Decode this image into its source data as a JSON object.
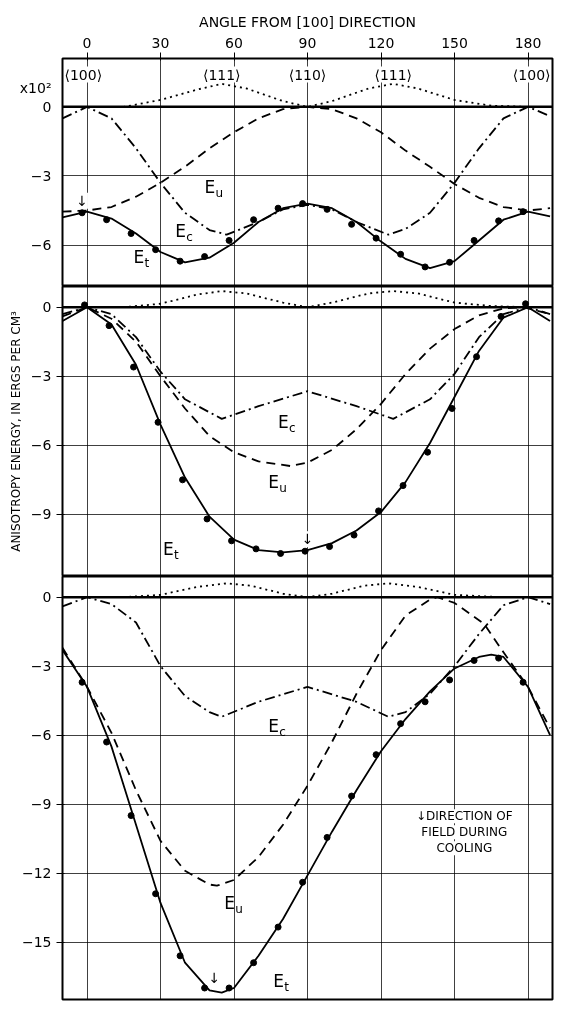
{
  "chart_data": [
    {
      "type": "line",
      "xlabel": "ANGLE FROM [100] DIRECTION",
      "xlim": [
        -10,
        190
      ],
      "xticks": [
        0,
        30,
        60,
        90,
        120,
        150,
        180
      ],
      "ylim": [
        -7.8,
        2.1
      ],
      "yticks": [
        0,
        -3,
        -6
      ],
      "grid": true,
      "ref_lines": [
        {
          "axis": "y",
          "value": 0
        }
      ],
      "annotations": [
        "x10²",
        "⟨100⟩",
        "⟨111⟩",
        "⟨110⟩",
        "⟨111⟩",
        "⟨100⟩",
        {
          "text": "↓",
          "x": -2,
          "y": -4.6
        }
      ],
      "series": [
        {
          "name": "E$_{t}$",
          "color": "#000000",
          "line_style": "solid",
          "x": [
            -10,
            0,
            10,
            20,
            30,
            40,
            50,
            60,
            70,
            80,
            90,
            100,
            110,
            120,
            130,
            140,
            150,
            160,
            170,
            180,
            189
          ],
          "values": [
            -4.8,
            -4.55,
            -4.85,
            -5.5,
            -6.3,
            -6.75,
            -6.55,
            -5.9,
            -5.0,
            -4.4,
            -4.2,
            -4.4,
            -5.0,
            -5.85,
            -6.6,
            -7.0,
            -6.7,
            -5.8,
            -4.9,
            -4.55,
            -4.75
          ]
        },
        {
          "type": "scatter",
          "marker": "circle",
          "color": "#000000",
          "x": [
            -2,
            8,
            18,
            28,
            38,
            48,
            58,
            68,
            78,
            88,
            98,
            108,
            118,
            128,
            138,
            148,
            158,
            168,
            178
          ],
          "values": [
            -4.6,
            -4.9,
            -5.5,
            -6.2,
            -6.7,
            -6.5,
            -5.8,
            -4.9,
            -4.4,
            -4.2,
            -4.45,
            -5.1,
            -5.7,
            -6.4,
            -6.95,
            -6.75,
            -5.8,
            -4.95,
            -4.55
          ]
        },
        {
          "name": "E$_{c}$",
          "color": "#000000",
          "line_style": "dashdot",
          "x": [
            -10,
            0,
            10,
            20,
            30,
            40,
            50,
            57,
            70,
            80,
            90,
            100,
            110,
            123,
            130,
            140,
            150,
            160,
            170,
            180,
            189
          ],
          "values": [
            -0.5,
            0,
            -0.5,
            -1.8,
            -3.3,
            -4.6,
            -5.35,
            -5.55,
            -5.0,
            -4.45,
            -4.25,
            -4.45,
            -5.0,
            -5.55,
            -5.3,
            -4.6,
            -3.3,
            -1.8,
            -0.5,
            0,
            -0.4
          ]
        },
        {
          "name": "E$_{u}$",
          "color": "#000000",
          "line_style": "dashed",
          "x": [
            -10,
            0,
            10,
            20,
            30,
            40,
            50,
            60,
            70,
            80,
            90,
            100,
            110,
            120,
            130,
            140,
            150,
            160,
            170,
            180,
            189
          ],
          "values": [
            -4.55,
            -4.5,
            -4.35,
            -3.9,
            -3.3,
            -2.6,
            -1.8,
            -1.1,
            -0.5,
            -0.1,
            0,
            -0.1,
            -0.5,
            -1.1,
            -1.9,
            -2.6,
            -3.35,
            -3.95,
            -4.35,
            -4.5,
            -4.4
          ]
        },
        {
          "color": "#000000",
          "line_style": "dotted",
          "x": [
            0,
            15,
            30,
            45,
            55,
            65,
            80,
            90,
            100,
            115,
            125,
            135,
            150,
            165,
            180
          ],
          "values": [
            0,
            0,
            0.3,
            0.75,
            1.0,
            0.8,
            0.25,
            0,
            0.25,
            0.8,
            1.0,
            0.8,
            0.3,
            0.05,
            0
          ]
        }
      ]
    },
    {
      "type": "line",
      "ylabel": "ANISOTROPY ENERGY, IN ERGS PER CM³",
      "xlim": [
        -10,
        190
      ],
      "xticks": [
        0,
        30,
        60,
        90,
        120,
        150,
        180
      ],
      "ylim": [
        -11.7,
        0.9
      ],
      "yticks": [
        0,
        -3,
        -6,
        -9
      ],
      "grid": true,
      "tick_labels": "y",
      "ref_lines": [
        {
          "axis": "y",
          "value": 0
        }
      ],
      "annotations": [
        {
          "text": "↓",
          "x": 90,
          "y": -10.6
        }
      ],
      "series": [
        {
          "name": "E$_{t}$",
          "color": "#000000",
          "line_style": "solid",
          "x": [
            -10,
            0,
            10,
            20,
            30,
            40,
            50,
            60,
            70,
            80,
            90,
            100,
            110,
            120,
            130,
            140,
            150,
            160,
            170,
            180,
            189
          ],
          "values": [
            -0.6,
            0,
            -0.75,
            -2.5,
            -5.1,
            -7.4,
            -9.1,
            -10.1,
            -10.55,
            -10.65,
            -10.55,
            -10.25,
            -9.7,
            -8.9,
            -7.6,
            -5.9,
            -3.9,
            -1.9,
            -0.45,
            0,
            -0.6
          ]
        },
        {
          "type": "scatter",
          "marker": "circle",
          "color": "#000000",
          "x": [
            -1,
            9,
            19,
            29,
            39,
            49,
            59,
            69,
            79,
            89,
            99,
            109,
            119,
            129,
            139,
            149,
            159,
            169,
            179
          ],
          "values": [
            0.1,
            -0.8,
            -2.6,
            -5.0,
            -7.5,
            -9.2,
            -10.15,
            -10.5,
            -10.7,
            -10.6,
            -10.4,
            -9.9,
            -8.85,
            -7.75,
            -6.3,
            -4.4,
            -2.15,
            -0.4,
            0.15
          ]
        },
        {
          "name": "E$_{c}$",
          "color": "#000000",
          "line_style": "dashdot",
          "x": [
            -10,
            0,
            10,
            20,
            30,
            40,
            55,
            70,
            90,
            110,
            125,
            140,
            150,
            160,
            170,
            180,
            189
          ],
          "values": [
            -0.3,
            0,
            -0.3,
            -1.3,
            -2.8,
            -4.0,
            -4.85,
            -4.3,
            -3.65,
            -4.3,
            -4.85,
            -4.0,
            -2.9,
            -1.3,
            -0.3,
            0,
            -0.3
          ]
        },
        {
          "name": "E$_{u}$",
          "color": "#000000",
          "line_style": "dashed",
          "x": [
            -10,
            0,
            10,
            20,
            30,
            40,
            50,
            60,
            70,
            83,
            90,
            100,
            110,
            120,
            130,
            140,
            150,
            160,
            170,
            178,
            189
          ],
          "values": [
            -0.4,
            0,
            -0.5,
            -1.5,
            -3.0,
            -4.4,
            -5.6,
            -6.3,
            -6.7,
            -6.9,
            -6.75,
            -6.2,
            -5.3,
            -4.2,
            -2.9,
            -1.8,
            -0.95,
            -0.35,
            -0.05,
            0,
            -0.3
          ]
        },
        {
          "color": "#000000",
          "line_style": "dotted",
          "x": [
            0,
            15,
            30,
            45,
            55,
            65,
            80,
            90,
            100,
            115,
            125,
            135,
            150,
            165,
            180
          ],
          "values": [
            0,
            0,
            0.15,
            0.55,
            0.7,
            0.6,
            0.2,
            0,
            0.2,
            0.6,
            0.7,
            0.6,
            0.2,
            0.05,
            0
          ]
        }
      ]
    },
    {
      "type": "line",
      "xlim": [
        -10,
        190
      ],
      "xticks": [
        0,
        30,
        60,
        90,
        120,
        150,
        180
      ],
      "ylim": [
        -17.5,
        0.9
      ],
      "yticks": [
        0,
        -3,
        -6,
        -9,
        -12,
        -15
      ],
      "grid": true,
      "tick_labels": "y",
      "ref_lines": [
        {
          "axis": "y",
          "value": 0
        }
      ],
      "annotations": [
        {
          "text": "↓",
          "x": 52,
          "y": -17.1
        },
        "↓DIRECTION OF\nFIELD DURING\nCOOLING"
      ],
      "series": [
        {
          "name": "E$_{t}$",
          "color": "#000000",
          "line_style": "solid",
          "x": [
            -10,
            0,
            10,
            20,
            30,
            40,
            50,
            55,
            60,
            70,
            80,
            90,
            100,
            110,
            120,
            130,
            140,
            150,
            160,
            165,
            170,
            180,
            189
          ],
          "values": [
            -2.3,
            -3.9,
            -6.5,
            -9.9,
            -13.3,
            -15.9,
            -17.1,
            -17.2,
            -17.0,
            -15.6,
            -14.0,
            -12.1,
            -10.2,
            -8.4,
            -6.7,
            -5.3,
            -4.1,
            -3.1,
            -2.6,
            -2.5,
            -2.6,
            -3.9,
            -6.0
          ]
        },
        {
          "type": "scatter",
          "marker": "circle",
          "color": "#000000",
          "x": [
            -2,
            8,
            18,
            28,
            38,
            48,
            58,
            68,
            78,
            88,
            98,
            108,
            118,
            128,
            138,
            148,
            158,
            168,
            178
          ],
          "values": [
            -3.7,
            -6.3,
            -9.5,
            -12.9,
            -15.6,
            -17.0,
            -17.0,
            -15.9,
            -14.35,
            -12.4,
            -10.45,
            -8.65,
            -6.85,
            -5.5,
            -4.55,
            -3.6,
            -2.75,
            -2.65,
            -3.7
          ]
        },
        {
          "name": "E$_{c}$",
          "color": "#000000",
          "line_style": "dashdot",
          "x": [
            -10,
            0,
            10,
            20,
            30,
            40,
            50,
            55,
            70,
            90,
            110,
            123,
            130,
            140,
            150,
            160,
            170,
            180,
            189
          ],
          "values": [
            -0.4,
            0,
            -0.3,
            -1.1,
            -3.0,
            -4.3,
            -5.0,
            -5.2,
            -4.55,
            -3.9,
            -4.55,
            -5.2,
            -5.0,
            -4.2,
            -3.0,
            -1.6,
            -0.35,
            0,
            -0.3
          ]
        },
        {
          "name": "E$_{u}$",
          "color": "#000000",
          "line_style": "dashed",
          "x": [
            -10,
            0,
            10,
            20,
            30,
            40,
            50,
            53,
            60,
            70,
            80,
            90,
            100,
            110,
            120,
            130,
            140,
            143,
            150,
            162,
            170,
            180,
            189
          ],
          "values": [
            -2.2,
            -3.9,
            -5.9,
            -8.4,
            -10.6,
            -11.9,
            -12.5,
            -12.55,
            -12.3,
            -11.3,
            -9.9,
            -8.2,
            -6.3,
            -4.2,
            -2.3,
            -0.8,
            -0.1,
            0,
            -0.25,
            -1.15,
            -2.4,
            -3.9,
            -5.7
          ]
        },
        {
          "color": "#000000",
          "line_style": "dotted",
          "x": [
            0,
            15,
            30,
            45,
            57,
            67,
            80,
            90,
            100,
            113,
            123,
            135,
            150,
            165,
            180
          ],
          "values": [
            0,
            0,
            0.1,
            0.45,
            0.6,
            0.5,
            0.15,
            0,
            0.15,
            0.5,
            0.6,
            0.45,
            0.1,
            0.02,
            0
          ]
        }
      ]
    }
  ]
}
